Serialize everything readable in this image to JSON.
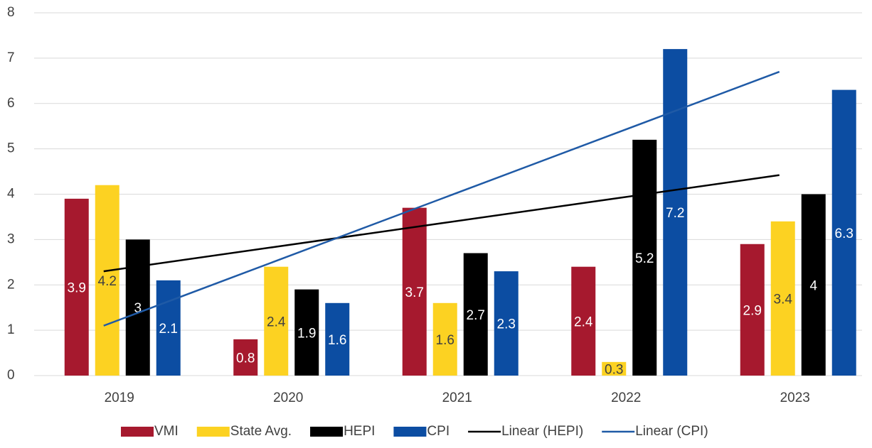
{
  "chart_data": {
    "type": "bar",
    "categories": [
      "2019",
      "2020",
      "2021",
      "2022",
      "2023"
    ],
    "series": [
      {
        "name": "VMI",
        "color": "#a6192e",
        "values": [
          3.9,
          0.8,
          3.7,
          2.4,
          2.9
        ]
      },
      {
        "name": "State Avg.",
        "color": "#fcd222",
        "values": [
          4.2,
          2.4,
          1.6,
          0.3,
          3.4
        ]
      },
      {
        "name": "HEPI",
        "color": "#000000",
        "values": [
          3,
          1.9,
          2.7,
          5.2,
          4
        ]
      },
      {
        "name": "CPI",
        "color": "#0c4da2",
        "values": [
          2.1,
          1.6,
          2.3,
          7.2,
          6.3
        ]
      }
    ],
    "trendlines": [
      {
        "name": "Linear (HEPI)",
        "color": "#000000",
        "values": [
          2.3,
          2.83,
          3.36,
          3.89,
          4.42
        ]
      },
      {
        "name": "Linear (CPI)",
        "color": "#1f5aa6",
        "values": [
          1.1,
          2.5,
          3.9,
          5.3,
          6.7
        ]
      }
    ],
    "ylim": [
      0,
      8
    ],
    "yticks": [
      0,
      1,
      2,
      3,
      4,
      5,
      6,
      7,
      8
    ],
    "grid": true,
    "legend": "bottom"
  }
}
